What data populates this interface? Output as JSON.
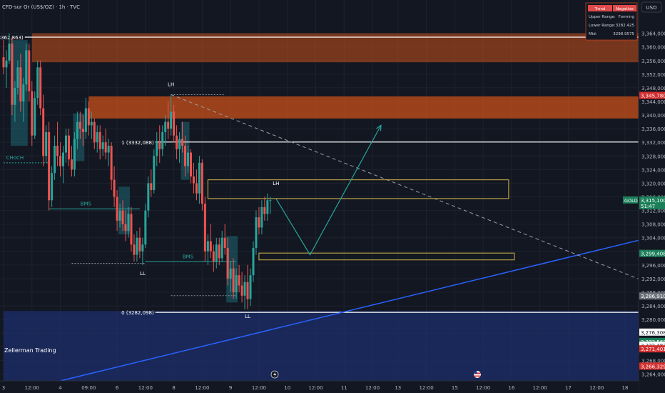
{
  "header": {
    "symbol": "CFD-sur Or (US$/OZ) · 1h · TVC"
  },
  "currency": "USD",
  "brand": "Zellerman Trading",
  "info_box": {
    "tab_trend": "Trend",
    "tab_negative": "Negative",
    "rows": [
      {
        "label": "Upper Range:",
        "value": "Forming"
      },
      {
        "label": "Lower Range:",
        "value": "3282.425"
      },
      {
        "label": "Mid:",
        "value": "3298.9575"
      }
    ]
  },
  "colors": {
    "up": "#26a69a",
    "down": "#ef5350",
    "zone": "#c8501a",
    "demand": "#1c2f6b",
    "trendline": "#2962ff",
    "arrow": "#26a69a",
    "box": "#d4b84a",
    "fib": "#ffffff",
    "tag_red": "#d32f2f",
    "tag_green": "#1b7f5a",
    "tag_gray": "#6b7078",
    "tag_white": "#ffffff"
  },
  "chart_data": {
    "type": "candlestick",
    "ylim": [
      3262,
      3370
    ],
    "y_ticks": [
      3264,
      3268,
      3272,
      3276,
      3280,
      3284,
      3288,
      3292,
      3296,
      3300,
      3304,
      3308,
      3312,
      3316,
      3320,
      3324,
      3328,
      3332,
      3336,
      3340,
      3344,
      3348,
      3352,
      3356,
      3360,
      3364
    ],
    "y_tick_labels": [
      "3,264,000",
      "3,268,000",
      "3,272,000",
      "3,276,000",
      "3,280,000",
      "3,284,000",
      "3,288,000",
      "3,292,000",
      "3,296,000",
      "3,300,000",
      "3,304,000",
      "3,308,000",
      "3,312,000",
      "3,316,000",
      "3,320,000",
      "3,324,000",
      "3,328,000",
      "3,332,000",
      "3,336,000",
      "3,340,000",
      "3,344,000",
      "3,348,000",
      "3,352,000",
      "3,356,000",
      "3,360,000",
      "3,364,000"
    ],
    "x_ticks": [
      {
        "i": 0,
        "label": "3"
      },
      {
        "i": 10,
        "label": "12:00"
      },
      {
        "i": 20,
        "label": "4"
      },
      {
        "i": 30,
        "label": "09:00"
      },
      {
        "i": 40,
        "label": "6"
      },
      {
        "i": 50,
        "label": "12:00"
      },
      {
        "i": 60,
        "label": "8"
      },
      {
        "i": 70,
        "label": "12:00"
      },
      {
        "i": 80,
        "label": "9"
      },
      {
        "i": 90,
        "label": "12:00"
      },
      {
        "i": 100,
        "label": "10"
      },
      {
        "i": 110,
        "label": "12:00"
      },
      {
        "i": 120,
        "label": "11"
      },
      {
        "i": 130,
        "label": "12:00"
      },
      {
        "i": 139,
        "label": "13"
      },
      {
        "i": 149,
        "label": "12:00"
      },
      {
        "i": 159,
        "label": "15"
      },
      {
        "i": 169,
        "label": "12:00"
      },
      {
        "i": 179,
        "label": "16"
      },
      {
        "i": 189,
        "label": "12:00"
      },
      {
        "i": 199,
        "label": "17"
      },
      {
        "i": 209,
        "label": "12:00"
      },
      {
        "i": 219,
        "label": "18"
      }
    ],
    "fib_levels": [
      {
        "label": "1.618 (3362,863)",
        "price": 3362.863,
        "i0": 10
      },
      {
        "label": "1 (3332,088)",
        "price": 3332.088,
        "i0": 56
      },
      {
        "label": "0 (3282,098)",
        "price": 3282.098,
        "i0": 56
      }
    ],
    "zones": [
      {
        "name": "supply-zone-upper",
        "from_i": 10,
        "y_top": 3364,
        "y_bottom": 3355.5
      },
      {
        "name": "supply-zone-main",
        "from_i": 30,
        "y_top": 3345.5,
        "y_bottom": 3339
      },
      {
        "name": "demand-zone",
        "from_i": 0,
        "y_top": 3282.5,
        "y_bottom": 3262
      }
    ],
    "boxes": [
      {
        "name": "resistance-box",
        "i0": 72,
        "i1": 178,
        "y_top": 3321,
        "y_bottom": 3315.5
      },
      {
        "name": "support-box",
        "i0": 90,
        "i1": 180,
        "y_top": 3299.5,
        "y_bottom": 3297.5
      }
    ],
    "trendline_up": {
      "i0": 20,
      "p0": 3262,
      "i1": 225,
      "p1": 3303.5
    },
    "trendline_down": {
      "i0": 59,
      "p0": 3346,
      "i1": 225,
      "p1": 3291.5
    },
    "projection": [
      {
        "i": 96,
        "p": 3315.5
      },
      {
        "i": 108,
        "p": 3299
      },
      {
        "i": 133,
        "p": 3337
      }
    ],
    "annotations": [
      {
        "text": "LH",
        "i": 59,
        "p": 3348.5
      },
      {
        "text": "LH",
        "i": 96,
        "p": 3319.5
      },
      {
        "text": "LL",
        "i": 49,
        "p": 3293
      },
      {
        "text": "LL",
        "i": 86,
        "p": 3280.5
      },
      {
        "text": "CHoCH",
        "i": 4,
        "p": 3327
      },
      {
        "text": "BMS",
        "i": 29,
        "p": 3313.5
      },
      {
        "text": "BMS",
        "i": 65,
        "p": 3298
      }
    ],
    "structure_lines": [
      {
        "name": "choch-line",
        "i0": 0,
        "i1": 16,
        "p": 3326,
        "dashed": true
      },
      {
        "name": "bms-line-1",
        "i0": 16,
        "i1": 48,
        "p": 3312.5,
        "dashed": false
      },
      {
        "name": "bms-line-2",
        "i0": 50,
        "i1": 82,
        "p": 3297,
        "dashed": false
      },
      {
        "name": "lh-dotted-line",
        "i0": 59,
        "i1": 78,
        "p": 3346,
        "dashed": true
      },
      {
        "name": "low-dotted-line",
        "i0": 24,
        "i1": 50,
        "p": 3296.5,
        "dashed": true
      },
      {
        "name": "low-dotted-line-2",
        "i0": 59,
        "i1": 82,
        "p": 3287,
        "dashed": true
      }
    ],
    "order_blocks": [
      {
        "i0": 3,
        "i1": 8,
        "hi": 3362,
        "lo": 3331
      },
      {
        "i0": 25,
        "i1": 28,
        "hi": 3340.5,
        "lo": 3326.5
      },
      {
        "i0": 41,
        "i1": 44,
        "hi": 3319,
        "lo": 3305
      },
      {
        "i0": 63,
        "i1": 65,
        "hi": 3338,
        "lo": 3321
      },
      {
        "i0": 79,
        "i1": 82,
        "hi": 3304.5,
        "lo": 3285
      }
    ],
    "price_tags": [
      {
        "text": "3,345,780",
        "price": 3345.78,
        "color": "tag_red"
      },
      {
        "text": "3,315,100",
        "sub": "51:47",
        "price": 3315.1,
        "color": "tag_green",
        "label": "GOLD"
      },
      {
        "text": "3,299,408",
        "price": 3299.408,
        "color": "tag_green"
      },
      {
        "text": "3,286,910",
        "price": 3286.91,
        "color": "tag_gray"
      },
      {
        "text": "3,276,308",
        "price": 3276.308,
        "color": "tag_white"
      },
      {
        "text": "3,273,563",
        "price": 3273.563,
        "color": "tag_green"
      },
      {
        "text": "3,272,482",
        "price": 3272.482,
        "color": "tag_white"
      },
      {
        "text": "3,271,401",
        "price": 3271.401,
        "color": "tag_red"
      },
      {
        "text": "3,266,329",
        "price": 3266.329,
        "color": "tag_red"
      }
    ],
    "candles": [
      [
        3357,
        3362,
        3352,
        3354
      ],
      [
        3354,
        3359,
        3348,
        3356
      ],
      [
        3356,
        3364,
        3355,
        3361
      ],
      [
        3361,
        3363,
        3340,
        3343
      ],
      [
        3343,
        3350,
        3338,
        3348
      ],
      [
        3348,
        3356,
        3346,
        3354
      ],
      [
        3354,
        3358,
        3341,
        3344
      ],
      [
        3344,
        3351,
        3338,
        3349
      ],
      [
        3349,
        3361,
        3347,
        3359
      ],
      [
        3359,
        3361,
        3344,
        3347
      ],
      [
        3347,
        3350,
        3331,
        3334
      ],
      [
        3334,
        3347,
        3333,
        3345
      ],
      [
        3345,
        3356,
        3343,
        3354
      ],
      [
        3354,
        3356,
        3340,
        3342
      ],
      [
        3342,
        3346,
        3325,
        3328
      ],
      [
        3328,
        3337,
        3326,
        3335
      ],
      [
        3335,
        3338,
        3312,
        3315
      ],
      [
        3315,
        3325,
        3313,
        3323
      ],
      [
        3323,
        3334,
        3321,
        3331
      ],
      [
        3331,
        3338,
        3325,
        3328
      ],
      [
        3328,
        3332,
        3322,
        3325
      ],
      [
        3325,
        3331,
        3320,
        3329
      ],
      [
        3329,
        3336,
        3326,
        3334
      ],
      [
        3334,
        3336,
        3325,
        3327
      ],
      [
        3327,
        3331,
        3322,
        3324
      ],
      [
        3324,
        3335,
        3322,
        3333
      ],
      [
        3333,
        3341,
        3330,
        3338
      ],
      [
        3338,
        3341,
        3333,
        3336
      ],
      [
        3336,
        3340,
        3331,
        3335
      ],
      [
        3335,
        3345,
        3333,
        3342
      ],
      [
        3342,
        3344,
        3334,
        3337
      ],
      [
        3337,
        3341,
        3333,
        3338
      ],
      [
        3338,
        3339,
        3330,
        3332
      ],
      [
        3332,
        3337,
        3329,
        3335
      ],
      [
        3335,
        3337,
        3327,
        3330
      ],
      [
        3330,
        3334,
        3328,
        3332
      ],
      [
        3332,
        3336,
        3327,
        3329
      ],
      [
        3329,
        3333,
        3325,
        3331
      ],
      [
        3331,
        3332,
        3318,
        3321
      ],
      [
        3321,
        3325,
        3313,
        3316
      ],
      [
        3316,
        3318,
        3306,
        3309
      ],
      [
        3309,
        3314,
        3307,
        3312
      ],
      [
        3312,
        3315,
        3306,
        3308
      ],
      [
        3308,
        3312,
        3303,
        3306
      ],
      [
        3306,
        3313,
        3304,
        3311
      ],
      [
        3311,
        3313,
        3300,
        3302
      ],
      [
        3302,
        3305,
        3297,
        3299
      ],
      [
        3299,
        3306,
        3297,
        3304
      ],
      [
        3304,
        3307,
        3298,
        3300
      ],
      [
        3300,
        3304,
        3296,
        3302
      ],
      [
        3302,
        3314,
        3301,
        3312
      ],
      [
        3312,
        3322,
        3310,
        3320
      ],
      [
        3320,
        3324,
        3316,
        3318
      ],
      [
        3318,
        3330,
        3317,
        3328
      ],
      [
        3328,
        3335,
        3325,
        3332
      ],
      [
        3332,
        3337,
        3326,
        3330
      ],
      [
        3330,
        3337,
        3328,
        3335
      ],
      [
        3335,
        3340,
        3331,
        3338
      ],
      [
        3338,
        3344,
        3333,
        3336
      ],
      [
        3336,
        3346,
        3334,
        3341
      ],
      [
        3341,
        3343,
        3332,
        3334
      ],
      [
        3334,
        3337,
        3327,
        3330
      ],
      [
        3330,
        3335,
        3326,
        3333
      ],
      [
        3333,
        3338,
        3329,
        3331
      ],
      [
        3331,
        3334,
        3322,
        3325
      ],
      [
        3325,
        3331,
        3323,
        3329
      ],
      [
        3329,
        3330,
        3320,
        3322
      ],
      [
        3322,
        3326,
        3317,
        3320
      ],
      [
        3320,
        3324,
        3315,
        3317
      ],
      [
        3317,
        3328,
        3314,
        3326
      ],
      [
        3326,
        3327,
        3312,
        3314
      ],
      [
        3314,
        3316,
        3297,
        3300
      ],
      [
        3300,
        3305,
        3296,
        3303
      ],
      [
        3303,
        3308,
        3298,
        3300
      ],
      [
        3300,
        3302,
        3294,
        3297
      ],
      [
        3297,
        3304,
        3295,
        3302
      ],
      [
        3302,
        3304,
        3296,
        3298
      ],
      [
        3298,
        3306,
        3297,
        3304
      ],
      [
        3304,
        3308,
        3299,
        3301
      ],
      [
        3301,
        3304,
        3290,
        3292
      ],
      [
        3292,
        3297,
        3288,
        3295
      ],
      [
        3295,
        3298,
        3286,
        3288
      ],
      [
        3288,
        3295,
        3286,
        3293
      ],
      [
        3293,
        3296,
        3288,
        3290
      ],
      [
        3290,
        3294,
        3285,
        3287
      ],
      [
        3287,
        3293,
        3283,
        3291
      ],
      [
        3291,
        3296,
        3283,
        3286
      ],
      [
        3286,
        3295,
        3284,
        3293
      ],
      [
        3293,
        3303,
        3291,
        3301
      ],
      [
        3301,
        3312,
        3299,
        3310
      ],
      [
        3310,
        3313,
        3305,
        3307
      ],
      [
        3307,
        3315,
        3305,
        3313
      ],
      [
        3313,
        3316,
        3309,
        3311
      ],
      [
        3311,
        3317,
        3309,
        3315
      ],
      [
        3315,
        3316,
        3311,
        3315
      ]
    ]
  }
}
